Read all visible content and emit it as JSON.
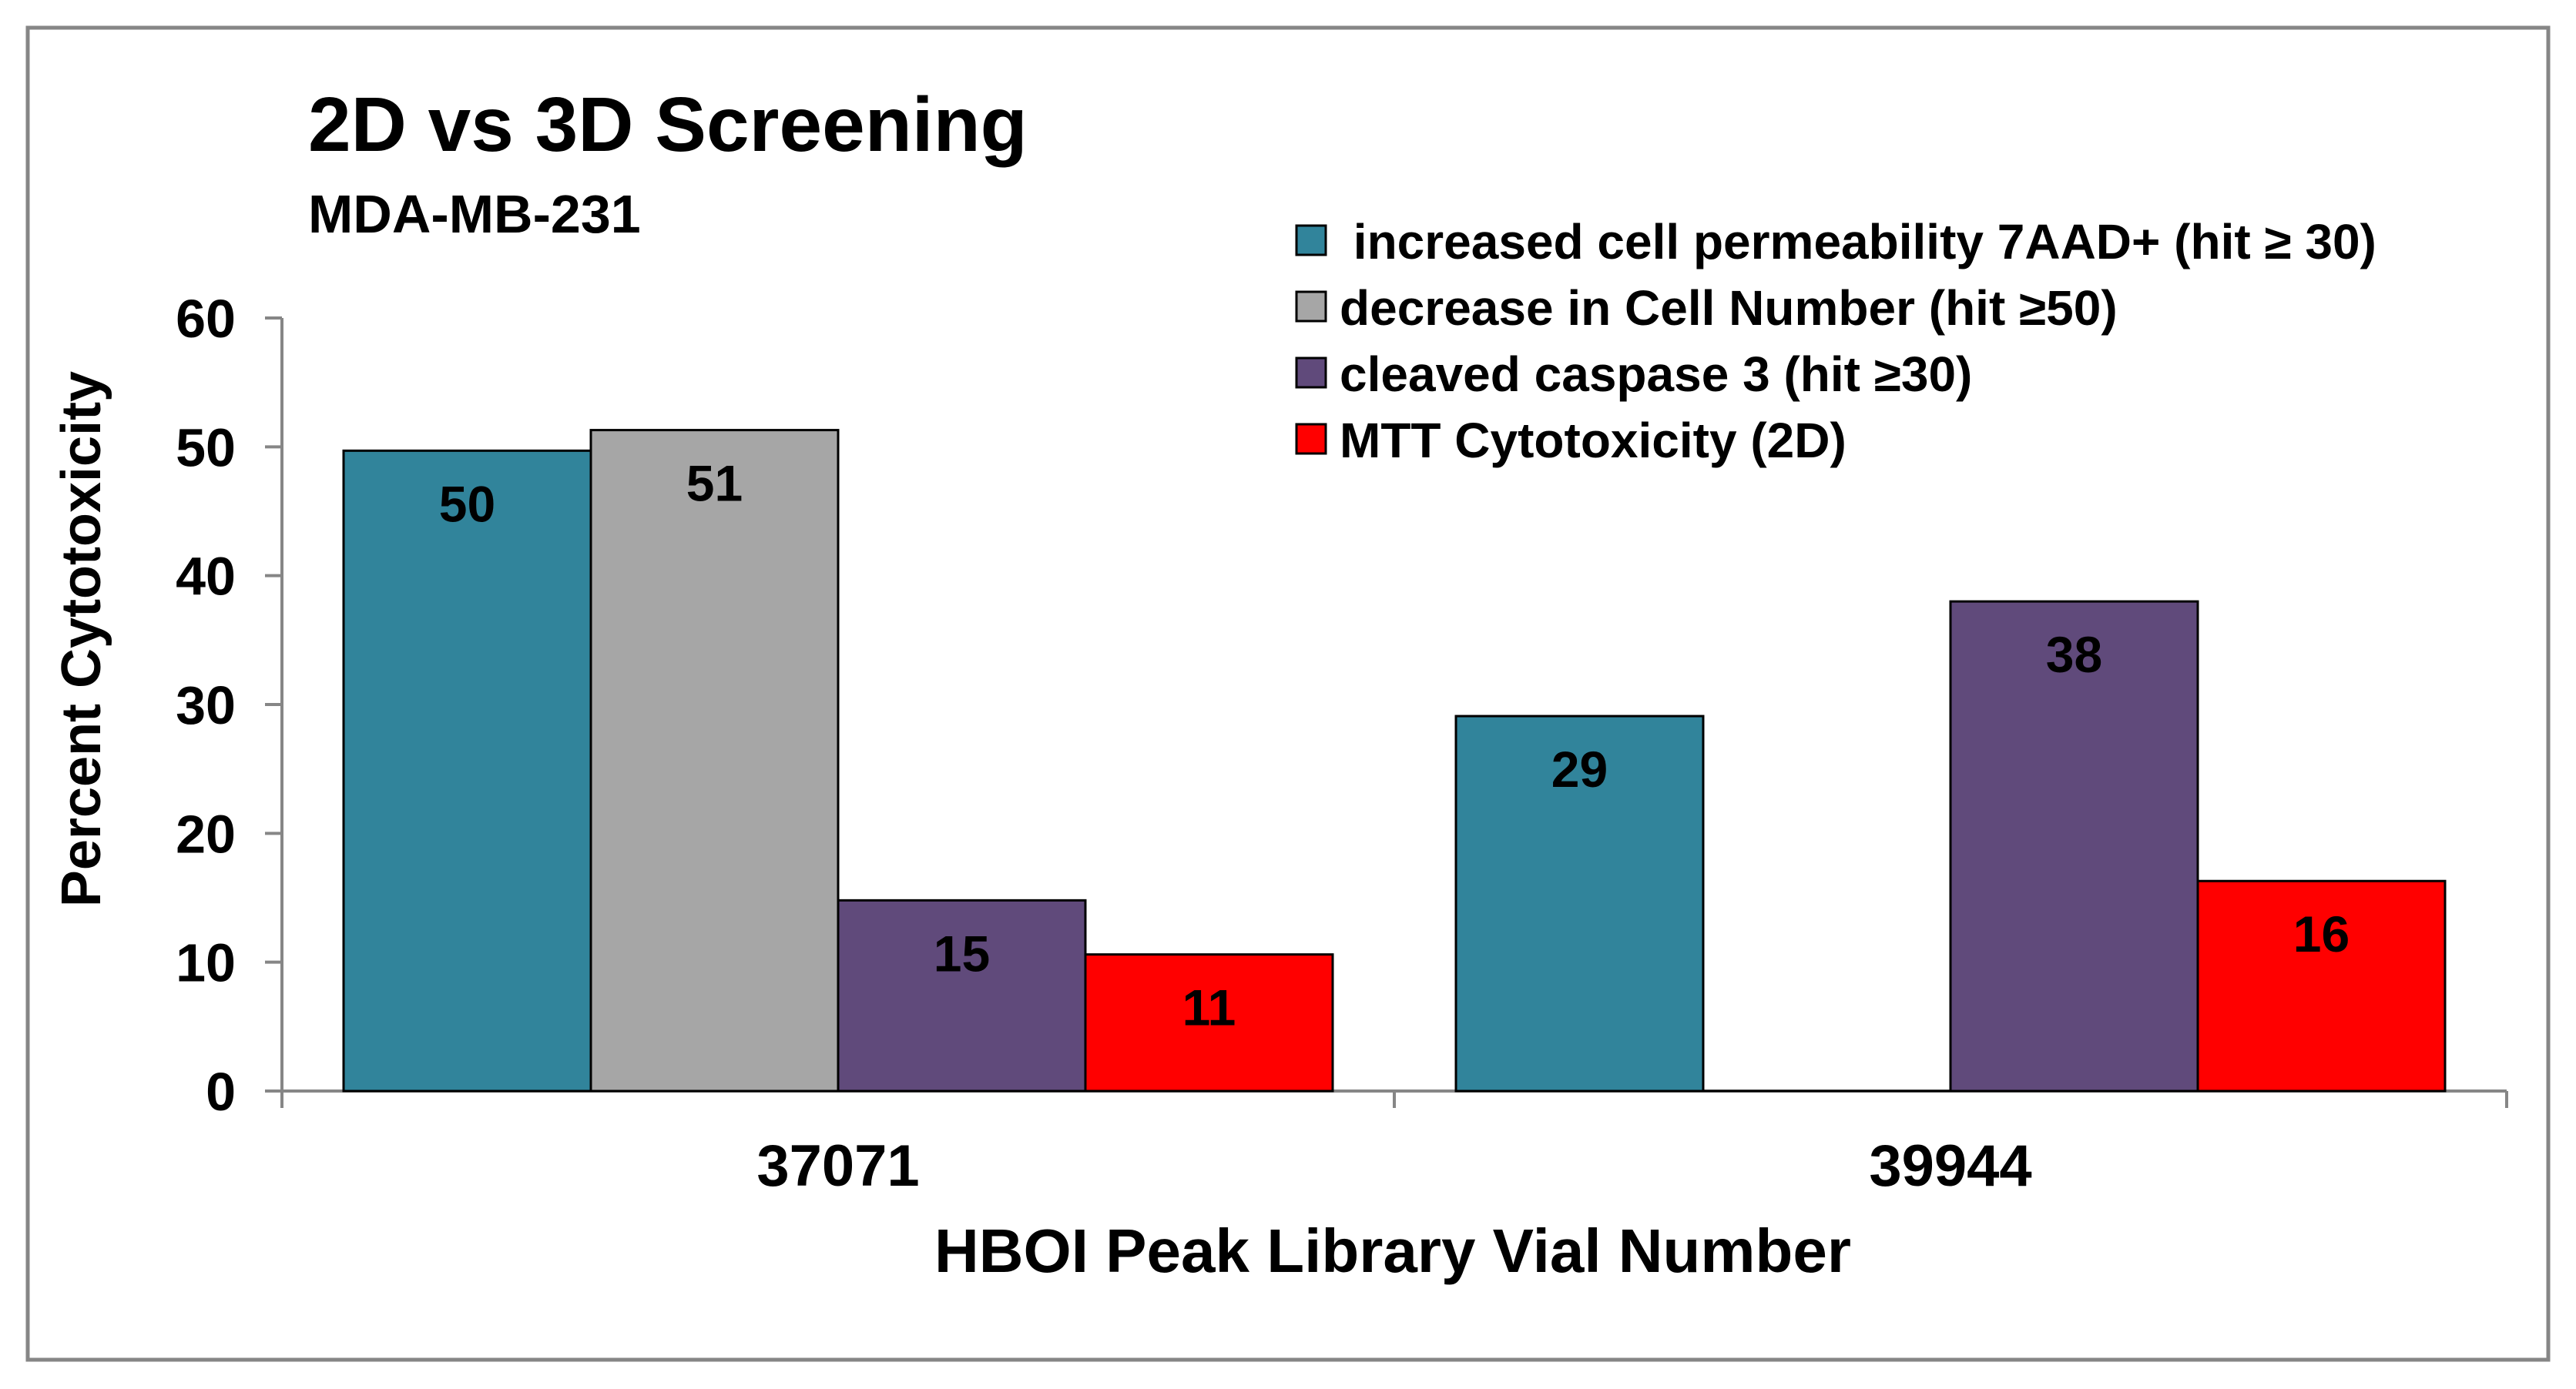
{
  "chart_data": {
    "type": "bar",
    "title": "2D vs 3D Screening",
    "subtitle": "MDA-MB-231",
    "xlabel": "HBOI Peak Library Vial Number",
    "ylabel": "Percent Cytotoxicity",
    "categories": [
      "37071",
      "39944"
    ],
    "ylim": [
      0,
      60
    ],
    "yticks": [
      0,
      10,
      20,
      30,
      40,
      50,
      60
    ],
    "grid": false,
    "legend_position": "top-right",
    "series": [
      {
        "name": " increased cell permeability 7AAD+ (hit ≥ 30)",
        "color": "#31849b",
        "values": [
          49.7,
          29.1
        ],
        "labels": [
          "50",
          "29"
        ]
      },
      {
        "name": "decrease in Cell Number (hit ≥50)",
        "color": "#a6a6a6",
        "values": [
          51.3,
          0
        ],
        "labels": [
          "51",
          ""
        ]
      },
      {
        "name": "cleaved caspase 3 (hit ≥30)",
        "color": "#604a7b",
        "values": [
          14.8,
          38.0
        ],
        "labels": [
          "15",
          "38"
        ]
      },
      {
        "name": "MTT Cytotoxicity (2D)",
        "color": "#ff0000",
        "values": [
          10.6,
          16.3
        ],
        "labels": [
          "11",
          "16"
        ]
      }
    ]
  },
  "colors": {
    "frame": "#868686",
    "axis": "#868686",
    "bar_stroke": "#000000"
  }
}
